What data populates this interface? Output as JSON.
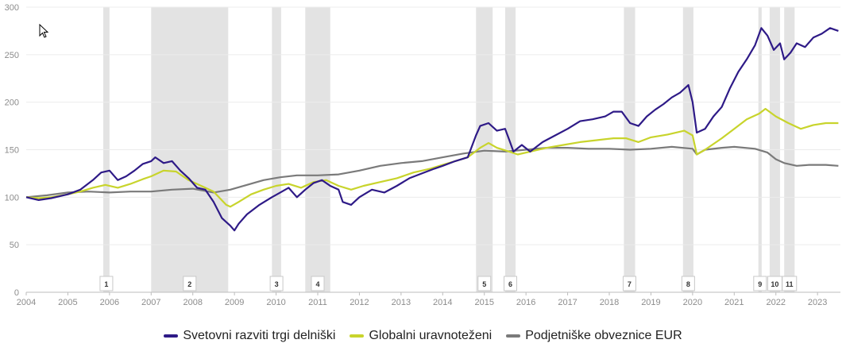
{
  "chart_data": {
    "type": "line",
    "title": "",
    "xlabel": "",
    "ylabel": "",
    "xlim": [
      2004.0,
      2023.55
    ],
    "ylim": [
      0,
      300
    ],
    "yticks": [
      0,
      50,
      100,
      150,
      200,
      250,
      300
    ],
    "xticks": [
      "2004",
      "2005",
      "2006",
      "2007",
      "2008",
      "2009",
      "2010",
      "2011",
      "2012",
      "2013",
      "2014",
      "2015",
      "2016",
      "2017",
      "2018",
      "2019",
      "2020",
      "2021",
      "2022",
      "2023"
    ],
    "grid": "horizontal",
    "legend_position": "bottom",
    "events": [
      {
        "label": "1",
        "start": 2005.85,
        "end": 2006.0
      },
      {
        "label": "2",
        "start": 2007.0,
        "end": 2008.85
      },
      {
        "label": "3",
        "start": 2009.9,
        "end": 2010.12
      },
      {
        "label": "4",
        "start": 2010.7,
        "end": 2011.3
      },
      {
        "label": "5",
        "start": 2014.8,
        "end": 2015.2
      },
      {
        "label": "6",
        "start": 2015.5,
        "end": 2015.75
      },
      {
        "label": "7",
        "start": 2018.35,
        "end": 2018.62
      },
      {
        "label": "8",
        "start": 2019.77,
        "end": 2020.02
      },
      {
        "label": "9",
        "start": 2021.58,
        "end": 2021.66
      },
      {
        "label": "10",
        "start": 2021.85,
        "end": 2022.1
      },
      {
        "label": "11",
        "start": 2022.2,
        "end": 2022.45
      }
    ],
    "series": [
      {
        "name": "Svetovni razviti trgi delniški",
        "color": "#2e1a87",
        "points": [
          [
            2004.0,
            100
          ],
          [
            2004.3,
            97
          ],
          [
            2004.6,
            99
          ],
          [
            2005.0,
            103
          ],
          [
            2005.3,
            108
          ],
          [
            2005.6,
            118
          ],
          [
            2005.8,
            126
          ],
          [
            2006.0,
            128
          ],
          [
            2006.2,
            118
          ],
          [
            2006.4,
            122
          ],
          [
            2006.6,
            128
          ],
          [
            2006.8,
            135
          ],
          [
            2007.0,
            138
          ],
          [
            2007.1,
            142
          ],
          [
            2007.3,
            136
          ],
          [
            2007.5,
            138
          ],
          [
            2007.7,
            128
          ],
          [
            2007.9,
            120
          ],
          [
            2008.1,
            110
          ],
          [
            2008.3,
            108
          ],
          [
            2008.5,
            95
          ],
          [
            2008.7,
            78
          ],
          [
            2008.9,
            70
          ],
          [
            2009.0,
            65
          ],
          [
            2009.1,
            72
          ],
          [
            2009.3,
            82
          ],
          [
            2009.6,
            92
          ],
          [
            2009.9,
            100
          ],
          [
            2010.1,
            105
          ],
          [
            2010.3,
            110
          ],
          [
            2010.5,
            100
          ],
          [
            2010.7,
            108
          ],
          [
            2010.9,
            115
          ],
          [
            2011.1,
            118
          ],
          [
            2011.3,
            112
          ],
          [
            2011.5,
            108
          ],
          [
            2011.6,
            95
          ],
          [
            2011.8,
            92
          ],
          [
            2012.0,
            100
          ],
          [
            2012.3,
            108
          ],
          [
            2012.6,
            105
          ],
          [
            2012.9,
            112
          ],
          [
            2013.2,
            120
          ],
          [
            2013.5,
            125
          ],
          [
            2013.8,
            130
          ],
          [
            2014.0,
            133
          ],
          [
            2014.3,
            138
          ],
          [
            2014.6,
            142
          ],
          [
            2014.8,
            165
          ],
          [
            2014.9,
            175
          ],
          [
            2015.1,
            178
          ],
          [
            2015.3,
            170
          ],
          [
            2015.5,
            172
          ],
          [
            2015.6,
            160
          ],
          [
            2015.7,
            148
          ],
          [
            2015.9,
            155
          ],
          [
            2016.1,
            148
          ],
          [
            2016.4,
            158
          ],
          [
            2016.7,
            165
          ],
          [
            2017.0,
            172
          ],
          [
            2017.3,
            180
          ],
          [
            2017.6,
            182
          ],
          [
            2017.9,
            185
          ],
          [
            2018.1,
            190
          ],
          [
            2018.3,
            190
          ],
          [
            2018.5,
            178
          ],
          [
            2018.7,
            175
          ],
          [
            2018.9,
            185
          ],
          [
            2019.1,
            192
          ],
          [
            2019.3,
            198
          ],
          [
            2019.5,
            205
          ],
          [
            2019.7,
            210
          ],
          [
            2019.9,
            218
          ],
          [
            2020.0,
            200
          ],
          [
            2020.1,
            168
          ],
          [
            2020.3,
            172
          ],
          [
            2020.5,
            185
          ],
          [
            2020.7,
            195
          ],
          [
            2020.9,
            215
          ],
          [
            2021.1,
            232
          ],
          [
            2021.3,
            245
          ],
          [
            2021.5,
            260
          ],
          [
            2021.65,
            278
          ],
          [
            2021.8,
            270
          ],
          [
            2021.95,
            255
          ],
          [
            2022.1,
            262
          ],
          [
            2022.2,
            245
          ],
          [
            2022.35,
            252
          ],
          [
            2022.5,
            262
          ],
          [
            2022.7,
            258
          ],
          [
            2022.9,
            268
          ],
          [
            2023.1,
            272
          ],
          [
            2023.3,
            278
          ],
          [
            2023.5,
            275
          ]
        ]
      },
      {
        "name": "Globalni uravnoteženi",
        "color": "#c8d42c",
        "points": [
          [
            2004.0,
            100
          ],
          [
            2004.3,
            99
          ],
          [
            2004.6,
            100
          ],
          [
            2005.0,
            103
          ],
          [
            2005.3,
            106
          ],
          [
            2005.6,
            110
          ],
          [
            2005.9,
            113
          ],
          [
            2006.2,
            110
          ],
          [
            2006.5,
            114
          ],
          [
            2006.8,
            119
          ],
          [
            2007.0,
            122
          ],
          [
            2007.3,
            128
          ],
          [
            2007.6,
            127
          ],
          [
            2007.9,
            118
          ],
          [
            2008.2,
            112
          ],
          [
            2008.5,
            106
          ],
          [
            2008.8,
            92
          ],
          [
            2008.9,
            90
          ],
          [
            2009.1,
            95
          ],
          [
            2009.4,
            103
          ],
          [
            2009.7,
            108
          ],
          [
            2010.0,
            112
          ],
          [
            2010.3,
            114
          ],
          [
            2010.6,
            110
          ],
          [
            2010.9,
            116
          ],
          [
            2011.2,
            118
          ],
          [
            2011.5,
            112
          ],
          [
            2011.8,
            108
          ],
          [
            2012.1,
            112
          ],
          [
            2012.5,
            116
          ],
          [
            2012.9,
            120
          ],
          [
            2013.3,
            126
          ],
          [
            2013.7,
            130
          ],
          [
            2014.0,
            134
          ],
          [
            2014.3,
            138
          ],
          [
            2014.6,
            142
          ],
          [
            2014.9,
            152
          ],
          [
            2015.1,
            157
          ],
          [
            2015.3,
            152
          ],
          [
            2015.6,
            148
          ],
          [
            2015.8,
            145
          ],
          [
            2016.1,
            148
          ],
          [
            2016.5,
            152
          ],
          [
            2016.9,
            155
          ],
          [
            2017.3,
            158
          ],
          [
            2017.7,
            160
          ],
          [
            2018.1,
            162
          ],
          [
            2018.4,
            162
          ],
          [
            2018.7,
            158
          ],
          [
            2019.0,
            163
          ],
          [
            2019.4,
            166
          ],
          [
            2019.8,
            170
          ],
          [
            2020.0,
            165
          ],
          [
            2020.1,
            145
          ],
          [
            2020.3,
            150
          ],
          [
            2020.7,
            162
          ],
          [
            2021.0,
            172
          ],
          [
            2021.3,
            182
          ],
          [
            2021.6,
            188
          ],
          [
            2021.75,
            193
          ],
          [
            2022.0,
            185
          ],
          [
            2022.3,
            178
          ],
          [
            2022.6,
            172
          ],
          [
            2022.9,
            176
          ],
          [
            2023.2,
            178
          ],
          [
            2023.5,
            178
          ]
        ]
      },
      {
        "name": "Podjetniške obveznice EUR",
        "color": "#7a7a7a",
        "points": [
          [
            2004.0,
            100
          ],
          [
            2004.5,
            102
          ],
          [
            2005.0,
            105
          ],
          [
            2005.5,
            106
          ],
          [
            2006.0,
            105
          ],
          [
            2006.5,
            106
          ],
          [
            2007.0,
            106
          ],
          [
            2007.5,
            108
          ],
          [
            2008.0,
            109
          ],
          [
            2008.5,
            105
          ],
          [
            2008.9,
            108
          ],
          [
            2009.3,
            113
          ],
          [
            2009.7,
            118
          ],
          [
            2010.1,
            121
          ],
          [
            2010.5,
            123
          ],
          [
            2011.0,
            123
          ],
          [
            2011.5,
            124
          ],
          [
            2012.0,
            128
          ],
          [
            2012.5,
            133
          ],
          [
            2013.0,
            136
          ],
          [
            2013.5,
            138
          ],
          [
            2014.0,
            142
          ],
          [
            2014.5,
            146
          ],
          [
            2015.0,
            149
          ],
          [
            2015.5,
            148
          ],
          [
            2016.0,
            150
          ],
          [
            2016.5,
            152
          ],
          [
            2017.0,
            152
          ],
          [
            2017.5,
            151
          ],
          [
            2018.0,
            151
          ],
          [
            2018.5,
            150
          ],
          [
            2019.0,
            151
          ],
          [
            2019.5,
            153
          ],
          [
            2020.0,
            151
          ],
          [
            2020.1,
            145
          ],
          [
            2020.3,
            150
          ],
          [
            2020.7,
            152
          ],
          [
            2021.0,
            153
          ],
          [
            2021.5,
            151
          ],
          [
            2021.8,
            147
          ],
          [
            2022.0,
            140
          ],
          [
            2022.2,
            136
          ],
          [
            2022.5,
            133
          ],
          [
            2022.8,
            134
          ],
          [
            2023.2,
            134
          ],
          [
            2023.5,
            133
          ]
        ]
      }
    ]
  }
}
